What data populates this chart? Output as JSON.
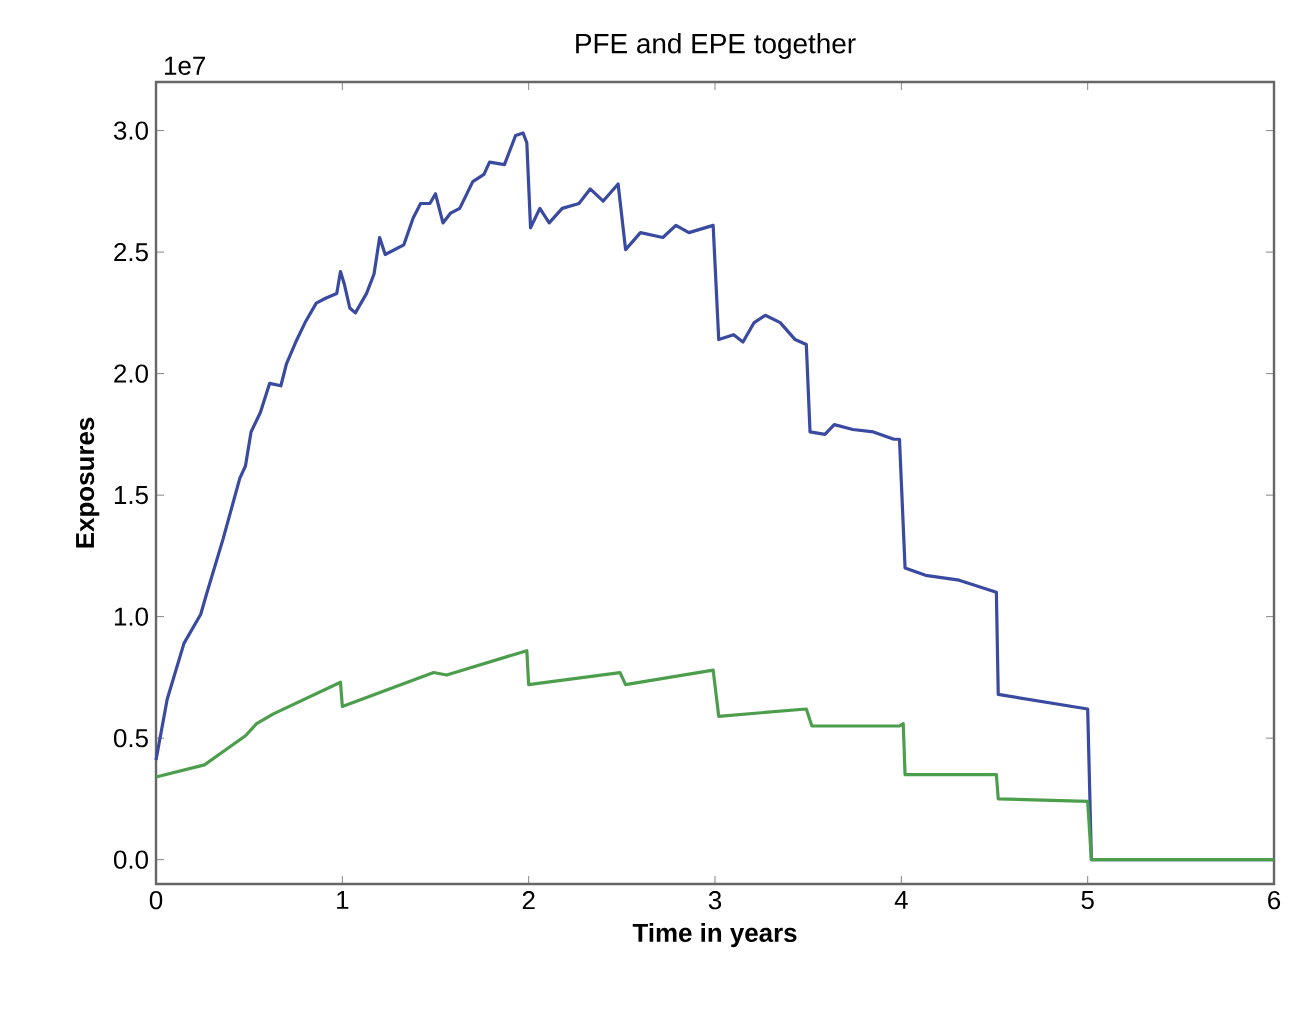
{
  "chart_data": {
    "type": "line",
    "title": "PFE and EPE together",
    "xlabel": "Time in years",
    "ylabel": "Exposures",
    "annotations": [
      "1e7"
    ],
    "xlim": [
      0,
      6
    ],
    "ylim": [
      -0.1,
      3.2
    ],
    "xticks": [
      0,
      1,
      2,
      3,
      4,
      5,
      6
    ],
    "yticks": [
      {
        "value": 0,
        "label": "0.0"
      },
      {
        "value": 0.5,
        "label": "0.5"
      },
      {
        "value": 1,
        "label": "1.0"
      },
      {
        "value": 1.5,
        "label": "1.5"
      },
      {
        "value": 2,
        "label": "2.0"
      },
      {
        "value": 2.5,
        "label": "2.5"
      },
      {
        "value": 3,
        "label": "3.0"
      }
    ],
    "grid": false,
    "marker": "none",
    "line_style": "solid",
    "series": [
      {
        "color": "#3a4aa0",
        "x": [
          0,
          0.06,
          0.15,
          0.24,
          0.27,
          0.36,
          0.45,
          0.48,
          0.51,
          0.56,
          0.61,
          0.67,
          0.7,
          0.75,
          0.8,
          0.86,
          0.91,
          0.97,
          0.99,
          1.01,
          1.04,
          1.07,
          1.13,
          1.17,
          1.2,
          1.23,
          1.33,
          1.38,
          1.42,
          1.47,
          1.5,
          1.54,
          1.58,
          1.63,
          1.7,
          1.76,
          1.79,
          1.87,
          1.93,
          1.97,
          1.99,
          2.01,
          2.06,
          2.11,
          2.18,
          2.27,
          2.33,
          2.4,
          2.48,
          2.52,
          2.6,
          2.72,
          2.79,
          2.86,
          2.99,
          3.02,
          3.1,
          3.15,
          3.21,
          3.27,
          3.35,
          3.43,
          3.49,
          3.51,
          3.59,
          3.64,
          3.74,
          3.85,
          3.96,
          3.99,
          4.02,
          4.13,
          4.31,
          4.51,
          4.52,
          5.0,
          5.02,
          6
        ],
        "values": [
          0.41,
          0.66,
          0.89,
          1.01,
          1.09,
          1.32,
          1.57,
          1.62,
          1.76,
          1.84,
          1.96,
          1.95,
          2.04,
          2.13,
          2.21,
          2.29,
          2.31,
          2.33,
          2.42,
          2.37,
          2.27,
          2.25,
          2.33,
          2.41,
          2.56,
          2.49,
          2.53,
          2.64,
          2.7,
          2.7,
          2.74,
          2.62,
          2.66,
          2.68,
          2.79,
          2.82,
          2.87,
          2.86,
          2.98,
          2.99,
          2.95,
          2.6,
          2.68,
          2.62,
          2.68,
          2.7,
          2.76,
          2.71,
          2.78,
          2.51,
          2.58,
          2.56,
          2.61,
          2.58,
          2.61,
          2.14,
          2.16,
          2.13,
          2.21,
          2.24,
          2.21,
          2.14,
          2.12,
          1.76,
          1.75,
          1.79,
          1.77,
          1.76,
          1.73,
          1.73,
          1.2,
          1.17,
          1.15,
          1.1,
          0.68,
          0.62,
          0,
          0
        ]
      },
      {
        "color": "#4c9e4c",
        "x": [
          0,
          0.26,
          0.48,
          0.54,
          0.63,
          0.99,
          1.0,
          1.49,
          1.56,
          1.99,
          2.0,
          2.49,
          2.52,
          2.99,
          3.02,
          3.49,
          3.52,
          3.99,
          4.01,
          4.02,
          4.51,
          4.52,
          5.0,
          5.02,
          6
        ],
        "values": [
          0.34,
          0.39,
          0.51,
          0.56,
          0.6,
          0.73,
          0.63,
          0.77,
          0.76,
          0.86,
          0.72,
          0.77,
          0.72,
          0.78,
          0.59,
          0.62,
          0.55,
          0.55,
          0.56,
          0.35,
          0.35,
          0.25,
          0.24,
          0,
          0
        ]
      }
    ]
  }
}
